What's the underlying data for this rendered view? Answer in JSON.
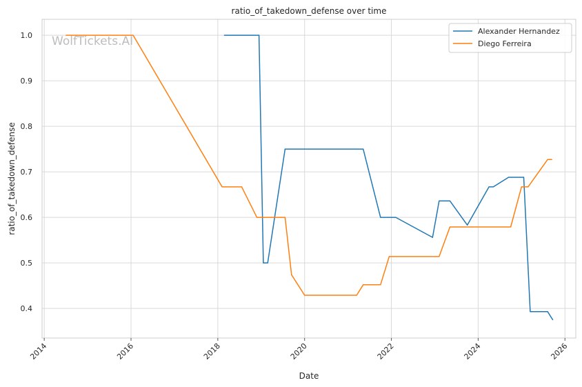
{
  "watermark": "WolfTickets.AI",
  "chart_data": {
    "type": "line",
    "title": "ratio_of_takedown_defense over time",
    "xlabel": "Date",
    "ylabel": "ratio_of_takedown_defense",
    "x_ticks": [
      "2014",
      "2016",
      "2018",
      "2020",
      "2022",
      "2024",
      "2026"
    ],
    "y_ticks": [
      "0.4",
      "0.5",
      "0.6",
      "0.7",
      "0.8",
      "0.9",
      "1.0"
    ],
    "xlim": [
      2013.95,
      2026.25
    ],
    "ylim": [
      0.335,
      1.035
    ],
    "grid": true,
    "legend_position": "top-right",
    "series": [
      {
        "name": "Alexander Hernandez",
        "color": "#1f77b4",
        "points": [
          [
            2018.15,
            1.0
          ],
          [
            2018.95,
            1.0
          ],
          [
            2019.05,
            0.5
          ],
          [
            2019.15,
            0.5
          ],
          [
            2019.55,
            0.75
          ],
          [
            2021.35,
            0.75
          ],
          [
            2021.75,
            0.6
          ],
          [
            2022.1,
            0.6
          ],
          [
            2022.95,
            0.556
          ],
          [
            2023.1,
            0.636
          ],
          [
            2023.35,
            0.636
          ],
          [
            2023.75,
            0.583
          ],
          [
            2024.25,
            0.667
          ],
          [
            2024.35,
            0.667
          ],
          [
            2024.7,
            0.688
          ],
          [
            2025.05,
            0.688
          ],
          [
            2025.2,
            0.393
          ],
          [
            2025.6,
            0.393
          ],
          [
            2025.72,
            0.375
          ]
        ]
      },
      {
        "name": "Diego Ferreira",
        "color": "#ff7f0e",
        "points": [
          [
            2014.5,
            1.0
          ],
          [
            2016.05,
            1.0
          ],
          [
            2018.1,
            0.667
          ],
          [
            2018.55,
            0.667
          ],
          [
            2018.9,
            0.6
          ],
          [
            2019.55,
            0.6
          ],
          [
            2019.7,
            0.474
          ],
          [
            2020.0,
            0.429
          ],
          [
            2021.2,
            0.429
          ],
          [
            2021.35,
            0.452
          ],
          [
            2021.75,
            0.452
          ],
          [
            2021.95,
            0.514
          ],
          [
            2023.1,
            0.514
          ],
          [
            2023.35,
            0.579
          ],
          [
            2024.75,
            0.579
          ],
          [
            2025.0,
            0.667
          ],
          [
            2025.15,
            0.667
          ],
          [
            2025.6,
            0.727
          ],
          [
            2025.7,
            0.727
          ]
        ]
      }
    ]
  }
}
